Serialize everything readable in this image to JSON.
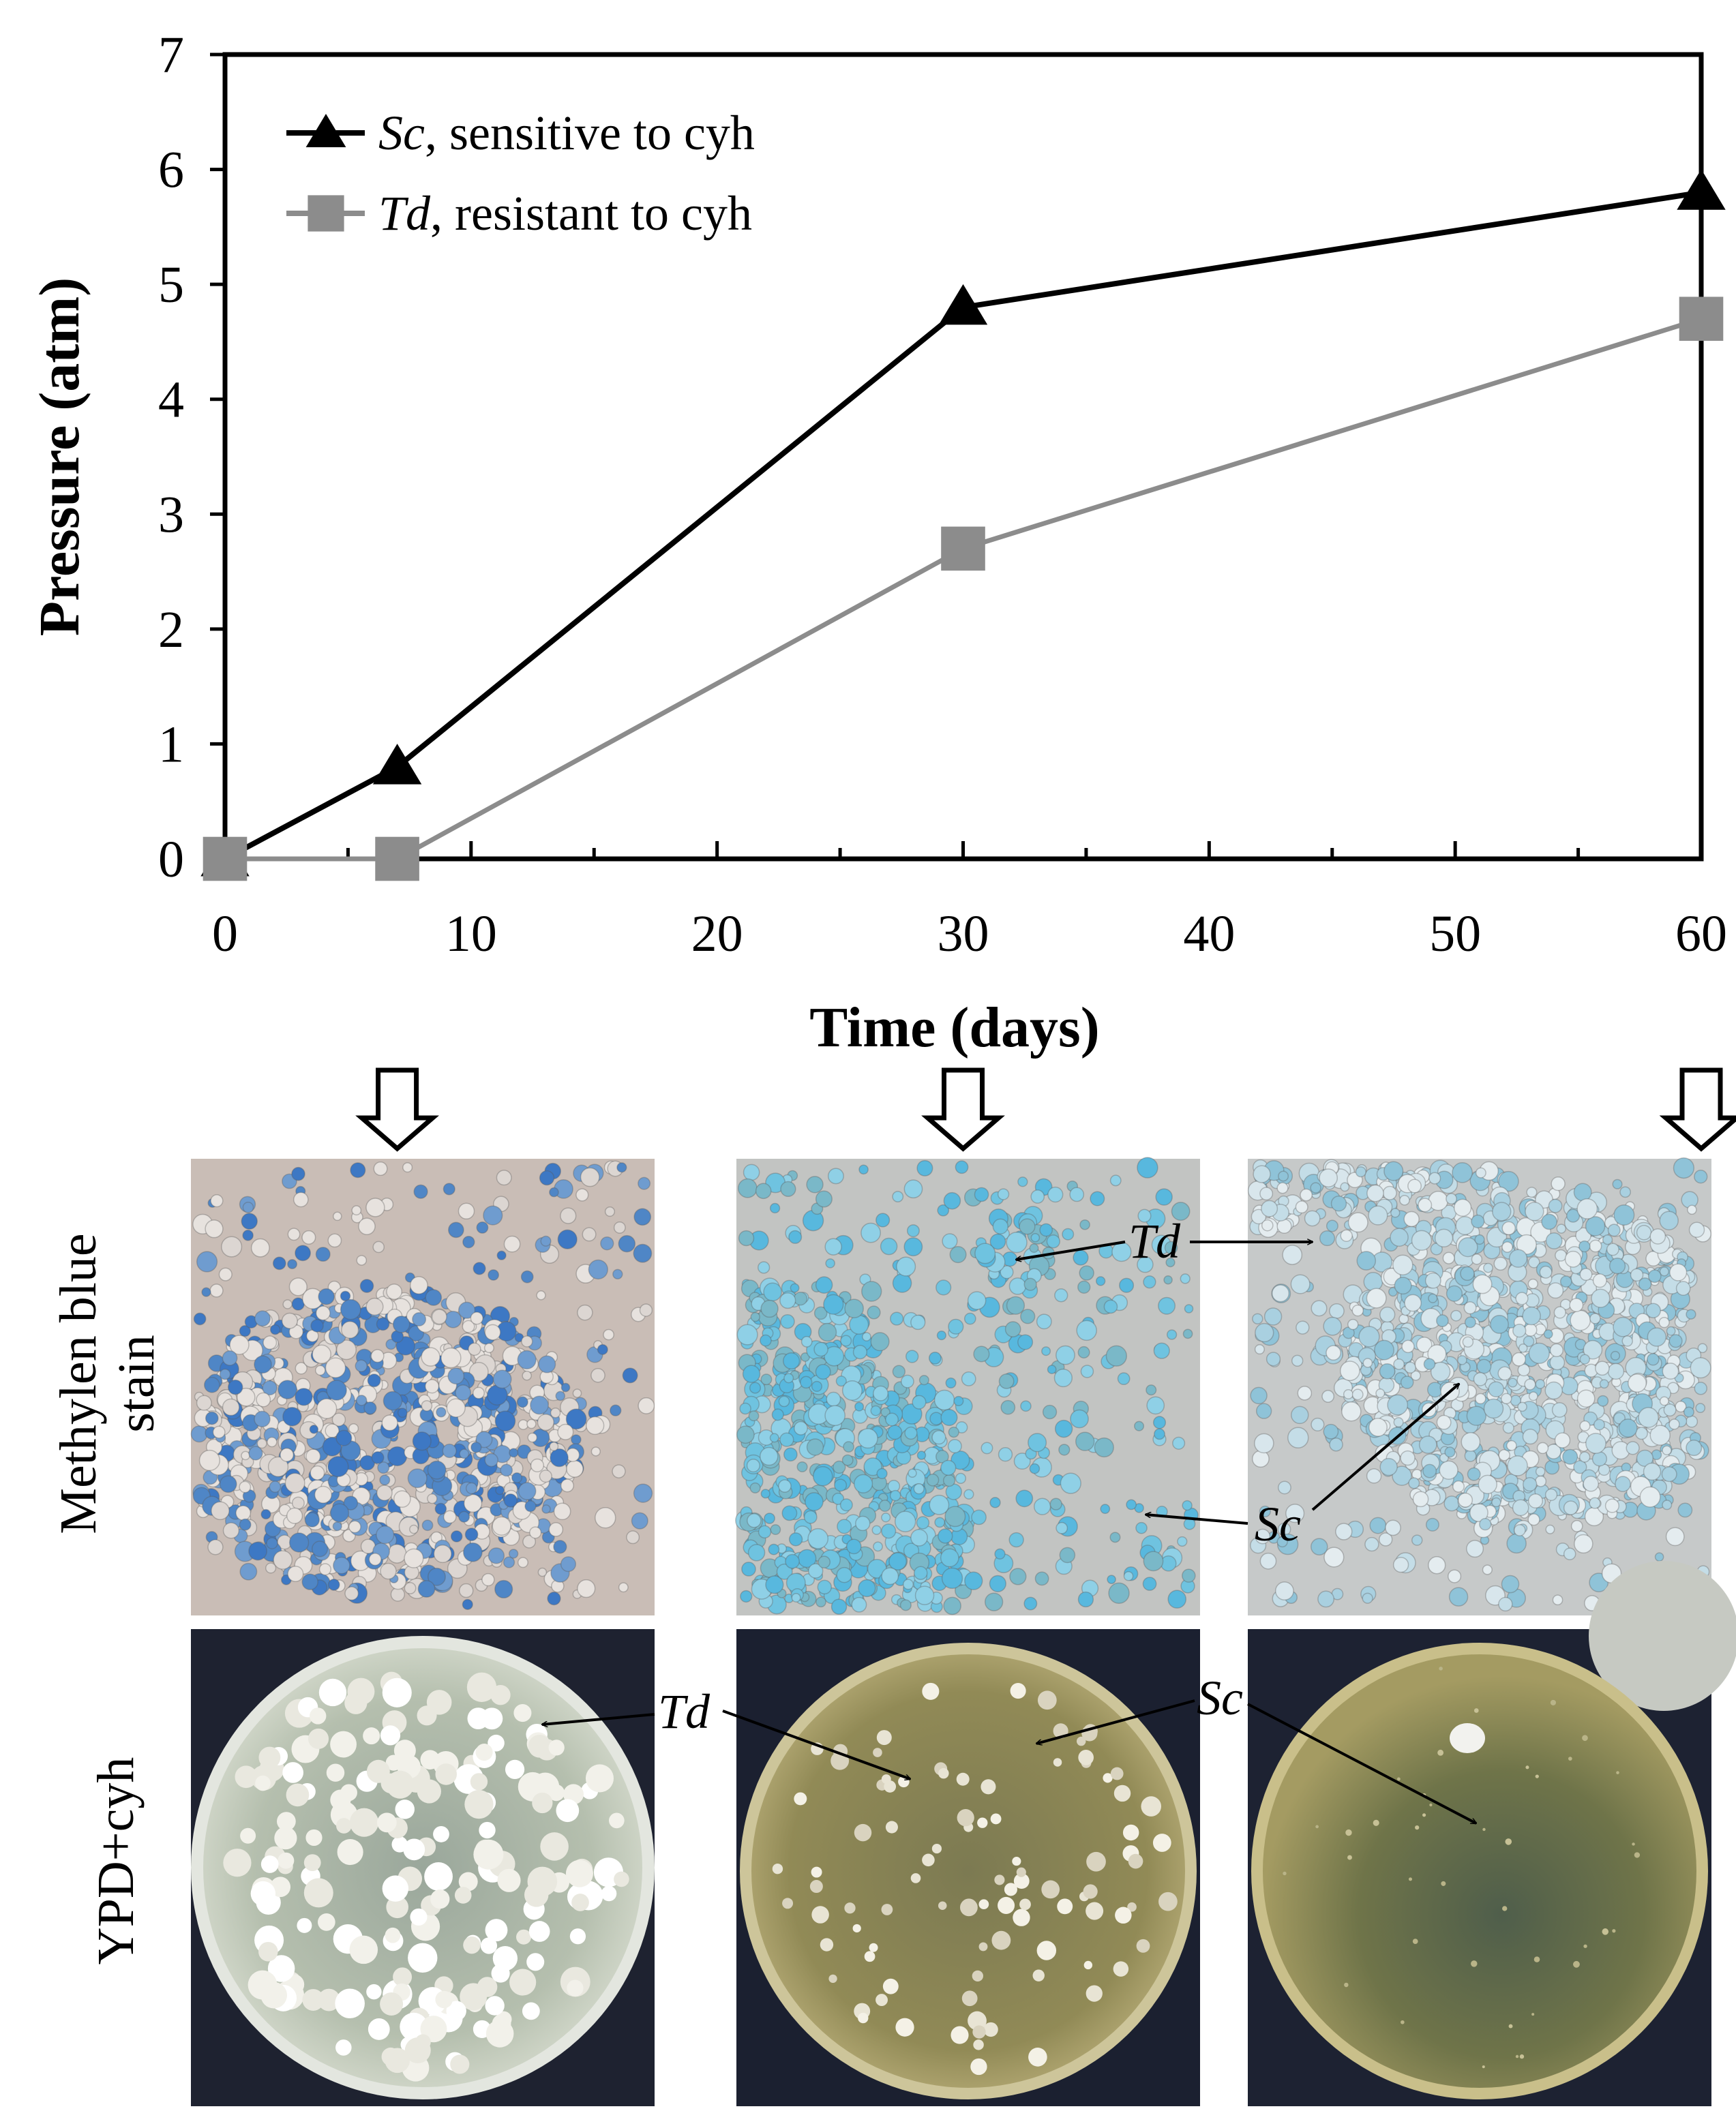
{
  "chart_data": {
    "type": "line",
    "xlabel": "Time (days)",
    "ylabel": "Pressure (atm)",
    "xlim": [
      0,
      60
    ],
    "ylim": [
      0,
      7
    ],
    "xticks": [
      0,
      10,
      20,
      30,
      40,
      50,
      60
    ],
    "yticks": [
      0,
      1,
      2,
      3,
      4,
      5,
      6,
      7
    ],
    "grid": false,
    "legend_position": "top-left",
    "series": [
      {
        "name_italic": "Sc",
        "name_rest": ", sensitive to cyh",
        "marker": "triangle",
        "color": "#000000",
        "x": [
          0,
          7,
          30,
          60
        ],
        "y": [
          0,
          0.8,
          4.8,
          5.8
        ]
      },
      {
        "name_italic": "Td",
        "name_rest": ", resistant to cyh",
        "marker": "square",
        "color": "#8c8c8c",
        "x": [
          0,
          7,
          30,
          60
        ],
        "y": [
          0,
          0,
          2.7,
          4.7
        ]
      }
    ]
  },
  "panels": {
    "row_labels": {
      "stain_line1": "Methylen blue",
      "stain_line2": "stain",
      "plate": "YPD+cyh"
    },
    "sampling_days": [
      7,
      30,
      60
    ],
    "annotations": {
      "td": "Td",
      "sc": "Sc"
    }
  }
}
